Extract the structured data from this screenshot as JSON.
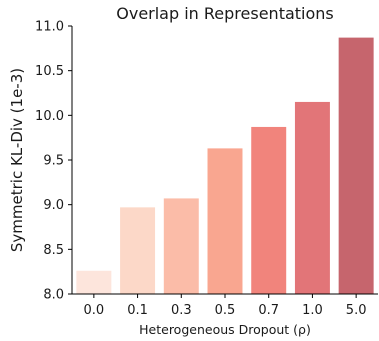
{
  "chart_data": {
    "type": "bar",
    "title": "Overlap in Representations",
    "xlabel": "Heterogeneous Dropout (ρ)",
    "ylabel": "Symmetric KL-Div (1e-3)",
    "categories": [
      "0.0",
      "0.1",
      "0.3",
      "0.5",
      "0.7",
      "1.0",
      "5.0"
    ],
    "values": [
      8.26,
      8.97,
      9.07,
      9.63,
      9.87,
      10.15,
      10.87
    ],
    "colors": [
      "#fde5dc",
      "#fcd8c8",
      "#fbbca8",
      "#f9a690",
      "#f1847c",
      "#e27578",
      "#c6656d"
    ],
    "ylim": [
      8.0,
      11.0
    ],
    "yticks": [
      "8.0",
      "8.5",
      "9.0",
      "9.5",
      "10.0",
      "10.5",
      "11.0"
    ],
    "grid": false,
    "legend": "none"
  }
}
